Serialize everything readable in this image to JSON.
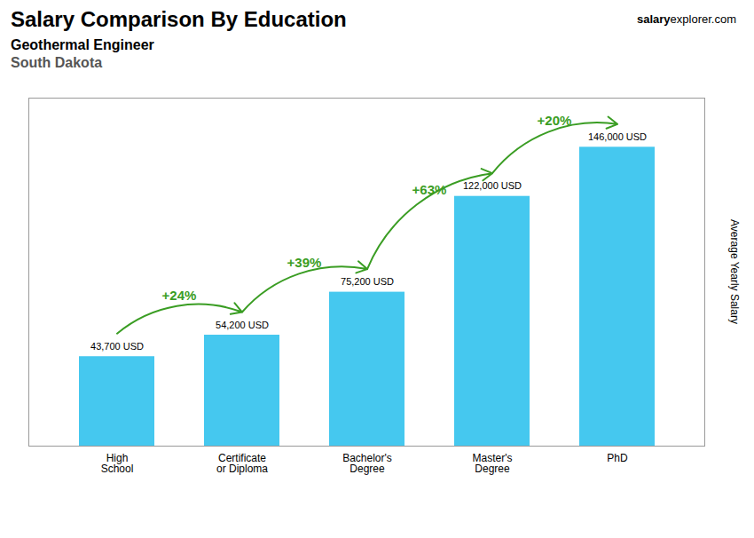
{
  "chart_data": {
    "type": "bar",
    "title": "Salary Comparison By Education",
    "subtitle": [
      "Geothermal Engineer",
      "South Dakota"
    ],
    "credit": [
      "salary",
      "explorer.com"
    ],
    "y_label": "Average Yearly Salary",
    "categories": [
      "High\nSchool",
      "Certificate\nor Diploma",
      "Bachelor's\nDegree",
      "Master's\nDegree",
      "PhD"
    ],
    "values": [
      43700,
      54200,
      75200,
      122000,
      146000
    ],
    "value_labels": [
      "43,700 USD",
      "54,200 USD",
      "75,200 USD",
      "122,000 USD",
      "146,000 USD"
    ],
    "data_labels": true,
    "annotations": [
      "+24%",
      "+39%",
      "+63%",
      "+20%"
    ],
    "color": "#45c8ef",
    "ylim": [
      0,
      170000
    ],
    "tick_labels": "x",
    "grid": false
  }
}
